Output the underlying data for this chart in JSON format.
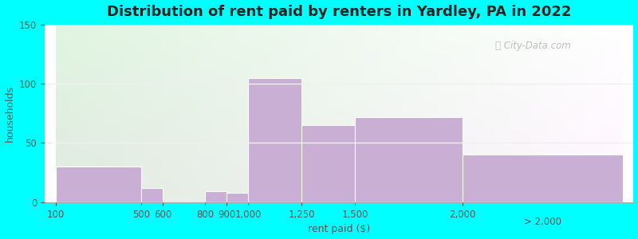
{
  "title": "Distribution of rent paid by renters in Yardley, PA in 2022",
  "xlabel": "rent paid ($)",
  "ylabel": "households",
  "bar_color": "#c9afd4",
  "background_color": "#00ffff",
  "ylim": [
    0,
    150
  ],
  "yticks": [
    0,
    50,
    100,
    150
  ],
  "title_fontsize": 13,
  "axis_label_fontsize": 9,
  "tick_label_fontsize": 8.5,
  "watermark_text": "ⓘ City-Data.com",
  "bins_left": [
    100,
    500,
    600,
    800,
    900,
    1000,
    1250,
    1500,
    2000
  ],
  "bins_right": [
    500,
    600,
    800,
    900,
    1000,
    1250,
    1500,
    2000,
    2750
  ],
  "heights": [
    30,
    12,
    0,
    9,
    8,
    105,
    65,
    72,
    40
  ],
  "xtick_positions": [
    100,
    500,
    600,
    800,
    900,
    1000,
    1250,
    1500,
    2000,
    2750
  ],
  "xtick_labels": [
    "100",
    "500",
    "600",
    "800",
    "9001,000",
    "1,250",
    "1,500",
    "2,000",
    "> 2,000",
    ""
  ],
  "grid_color": "#e8e8e8",
  "plot_bg_left_color": "#d4edd4",
  "plot_bg_right_color": "#f0f5f8"
}
